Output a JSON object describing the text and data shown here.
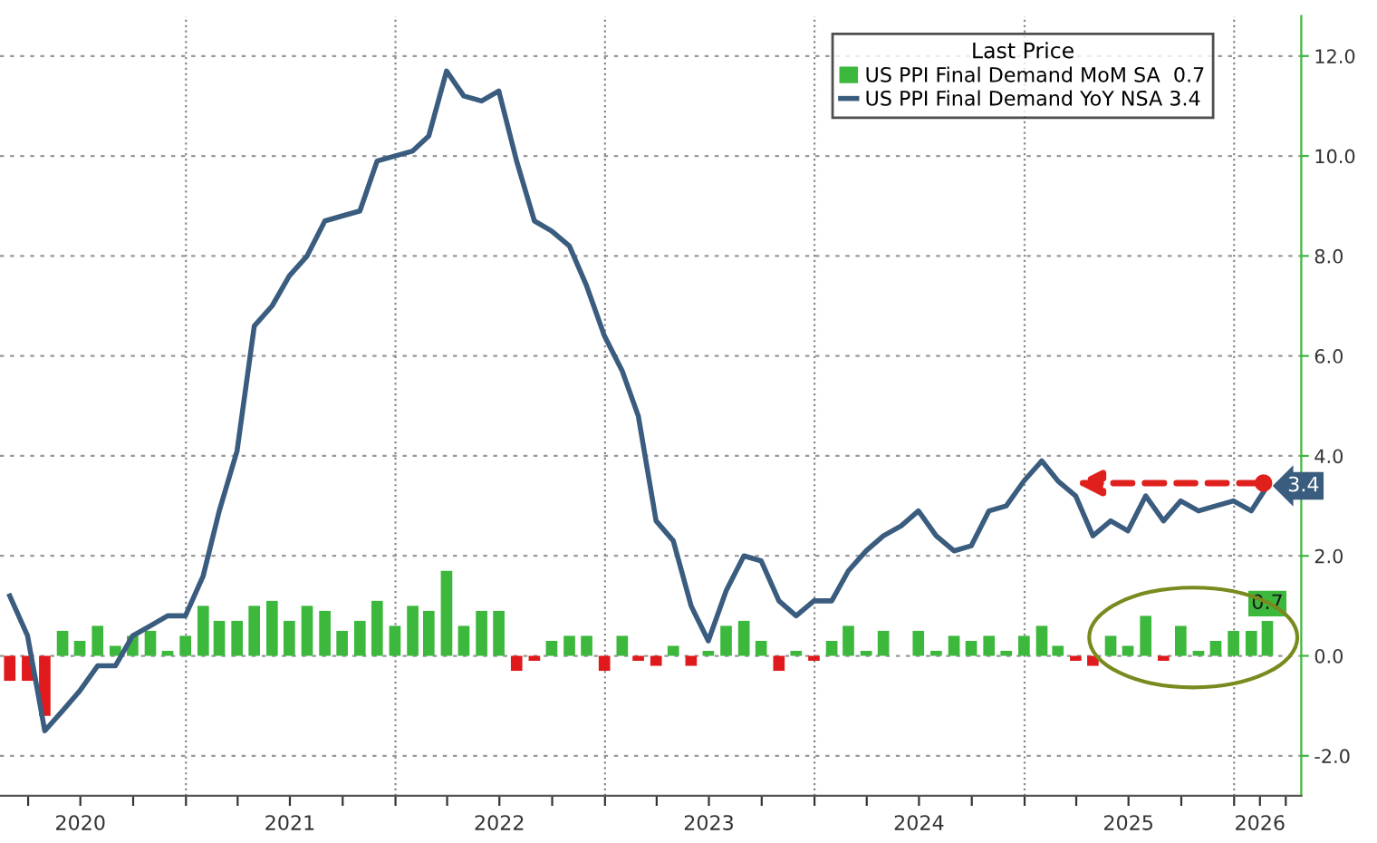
{
  "chart_data": {
    "type": "bar",
    "legend_title": "Last Price",
    "legend": "top right",
    "grid": "y",
    "x": [
      "2020-02-29",
      "2020-03-31",
      "2020-04-30",
      "2020-05-31",
      "2020-06-30",
      "2020-07-31",
      "2020-08-31",
      "2020-09-30",
      "2020-10-31",
      "2020-11-30",
      "2020-12-31",
      "2021-01-31",
      "2021-02-28",
      "2021-03-31",
      "2021-04-30",
      "2021-05-31",
      "2021-06-30",
      "2021-07-31",
      "2021-08-31",
      "2021-09-30",
      "2021-10-31",
      "2021-11-30",
      "2021-12-31",
      "2022-01-31",
      "2022-02-28",
      "2022-03-31",
      "2022-04-30",
      "2022-05-31",
      "2022-06-30",
      "2022-07-31",
      "2022-08-31",
      "2022-09-30",
      "2022-10-31",
      "2022-11-30",
      "2022-12-31",
      "2023-01-31",
      "2023-02-28",
      "2023-03-31",
      "2023-04-30",
      "2023-05-31",
      "2023-06-30",
      "2023-07-31",
      "2023-08-31",
      "2023-09-30",
      "2023-10-31",
      "2023-11-30",
      "2023-12-31",
      "2024-01-31",
      "2024-02-29",
      "2024-03-31",
      "2024-04-30",
      "2024-05-31",
      "2024-06-30",
      "2024-07-31",
      "2024-08-31",
      "2024-09-30",
      "2024-10-31",
      "2024-11-30",
      "2024-12-31",
      "2025-01-31",
      "2025-02-28",
      "2025-03-31",
      "2025-04-30",
      "2025-05-31",
      "2025-06-30",
      "2025-07-31",
      "2025-08-31",
      "2025-09-30",
      "2025-10-31",
      "2025-11-30",
      "2025-12-31",
      "2026-01-31",
      "2026-02-28"
    ],
    "series": [
      {
        "name": "US PPI Final Demand MoM SA  0.7",
        "color": "#3cb83c",
        "values": [
          -0.5,
          -0.5,
          -1.2,
          0.5,
          0.3,
          0.6,
          0.2,
          0.4,
          0.5,
          0.1,
          0.4,
          1.0,
          0.7,
          0.7,
          1.0,
          1.1,
          0.7,
          1.0,
          0.9,
          0.5,
          0.7,
          1.1,
          0.6,
          1.0,
          0.9,
          1.7,
          0.6,
          0.9,
          0.9,
          -0.3,
          -0.1,
          0.3,
          0.4,
          0.4,
          -0.3,
          0.4,
          -0.1,
          -0.2,
          0.2,
          -0.2,
          0.1,
          0.6,
          0.7,
          0.3,
          -0.3,
          0.1,
          -0.1,
          0.3,
          0.6,
          0.1,
          0.5,
          0.0,
          0.5,
          0.1,
          0.4,
          0.3,
          0.4,
          0.1,
          0.4,
          0.6,
          0.2,
          -0.1,
          -0.2,
          0.4,
          0.2,
          0.8,
          -0.1,
          0.6,
          0.1,
          0.3,
          0.5,
          0.5,
          0.7
        ],
        "colors": [
          "#e0191c",
          "#e0191c",
          "#e0191c",
          "#3cb83c",
          "#3cb83c",
          "#3cb83c",
          "#3cb83c",
          "#3cb83c",
          "#3cb83c",
          "#3cb83c",
          "#3cb83c",
          "#3cb83c",
          "#3cb83c",
          "#3cb83c",
          "#3cb83c",
          "#3cb83c",
          "#3cb83c",
          "#3cb83c",
          "#3cb83c",
          "#3cb83c",
          "#3cb83c",
          "#3cb83c",
          "#3cb83c",
          "#3cb83c",
          "#3cb83c",
          "#3cb83c",
          "#3cb83c",
          "#3cb83c",
          "#3cb83c",
          "#e0191c",
          "#e0191c",
          "#3cb83c",
          "#3cb83c",
          "#3cb83c",
          "#e0191c",
          "#3cb83c",
          "#e0191c",
          "#e0191c",
          "#3cb83c",
          "#e0191c",
          "#3cb83c",
          "#3cb83c",
          "#3cb83c",
          "#3cb83c",
          "#e0191c",
          "#3cb83c",
          "#e0191c",
          "#3cb83c",
          "#3cb83c",
          "#3cb83c",
          "#3cb83c",
          "#3cb83c",
          "#3cb83c",
          "#3cb83c",
          "#3cb83c",
          "#3cb83c",
          "#3cb83c",
          "#3cb83c",
          "#3cb83c",
          "#3cb83c",
          "#3cb83c",
          "#e0191c",
          "#e0191c",
          "#3cb83c",
          "#3cb83c",
          "#3cb83c",
          "#e0191c",
          "#3cb83c",
          "#3cb83c",
          "#3cb83c",
          "#3cb83c",
          "#3cb83c",
          "#3cb83c"
        ],
        "value_labels": [
          null,
          null,
          null,
          null,
          null,
          null,
          null,
          null,
          null,
          null,
          null,
          null,
          null,
          null,
          null,
          null,
          null,
          null,
          null,
          null,
          null,
          null,
          null,
          null,
          null,
          null,
          null,
          null,
          null,
          null,
          null,
          null,
          null,
          null,
          null,
          null,
          null,
          null,
          null,
          null,
          null,
          null,
          null,
          null,
          null,
          null,
          null,
          null,
          null,
          null,
          null,
          null,
          null,
          null,
          null,
          null,
          null,
          null,
          null,
          null,
          null,
          null,
          null,
          null,
          null,
          null,
          null,
          null,
          null,
          null,
          null,
          null,
          "0.7"
        ]
      },
      {
        "name": "US PPI Final Demand YoY NSA 3.4",
        "type": "line",
        "color": "#3a5c7e",
        "line_style": "solid",
        "values": [
          1.2,
          0.4,
          -1.5,
          -1.1,
          -0.7,
          -0.2,
          -0.2,
          0.4,
          0.6,
          0.8,
          0.8,
          1.6,
          2.9,
          4.1,
          6.6,
          7.0,
          7.6,
          8.0,
          8.7,
          8.8,
          8.9,
          9.9,
          10.0,
          10.1,
          10.4,
          11.7,
          11.2,
          11.1,
          11.3,
          9.9,
          8.7,
          8.5,
          8.2,
          7.4,
          6.4,
          5.7,
          4.8,
          2.7,
          2.3,
          1.0,
          0.3,
          1.3,
          2.0,
          1.9,
          1.1,
          0.8,
          1.1,
          1.1,
          1.7,
          2.1,
          2.4,
          2.6,
          2.9,
          2.4,
          2.1,
          2.2,
          2.9,
          3.0,
          3.5,
          3.9,
          3.5,
          3.2,
          2.4,
          2.7,
          2.5,
          3.2,
          2.7,
          3.1,
          2.9,
          3.0,
          3.1,
          2.9,
          3.4
        ],
        "value_labels": [
          null,
          null,
          null,
          null,
          null,
          null,
          null,
          null,
          null,
          null,
          null,
          null,
          null,
          null,
          null,
          null,
          null,
          null,
          null,
          null,
          null,
          null,
          null,
          null,
          null,
          null,
          null,
          null,
          null,
          null,
          null,
          null,
          null,
          null,
          null,
          null,
          null,
          null,
          null,
          null,
          null,
          null,
          null,
          null,
          null,
          null,
          null,
          null,
          null,
          null,
          null,
          null,
          null,
          null,
          null,
          null,
          null,
          null,
          null,
          null,
          null,
          null,
          null,
          null,
          null,
          null,
          null,
          null,
          null,
          null,
          null,
          null,
          "3.4"
        ]
      }
    ],
    "xlim": [
      "2020-02-12",
      "2026-04-28"
    ],
    "xticks": [
      {
        "value": "2020-04-01",
        "label": null
      },
      {
        "value": "2020-07-01",
        "label": "2020"
      },
      {
        "value": "2020-10-01",
        "label": null
      },
      {
        "value": "2021-01-01",
        "label": null
      },
      {
        "value": "2021-04-01",
        "label": null
      },
      {
        "value": "2021-07-01",
        "label": "2021"
      },
      {
        "value": "2021-10-01",
        "label": null
      },
      {
        "value": "2022-01-01",
        "label": null
      },
      {
        "value": "2022-04-01",
        "label": null
      },
      {
        "value": "2022-07-01",
        "label": "2022"
      },
      {
        "value": "2022-10-01",
        "label": null
      },
      {
        "value": "2023-01-01",
        "label": null
      },
      {
        "value": "2023-04-01",
        "label": null
      },
      {
        "value": "2023-07-01",
        "label": "2023"
      },
      {
        "value": "2023-10-01",
        "label": null
      },
      {
        "value": "2024-01-01",
        "label": null
      },
      {
        "value": "2024-04-01",
        "label": null
      },
      {
        "value": "2024-07-01",
        "label": "2024"
      },
      {
        "value": "2024-10-01",
        "label": null
      },
      {
        "value": "2025-01-01",
        "label": null
      },
      {
        "value": "2025-04-01",
        "label": null
      },
      {
        "value": "2025-07-01",
        "label": "2025"
      },
      {
        "value": "2025-10-01",
        "label": null
      },
      {
        "value": "2026-01-01",
        "label": null
      },
      {
        "value": "2026-02-15",
        "label": "2026"
      },
      {
        "value": "2026-04-01",
        "label": null
      }
    ],
    "ylim": [
      -2.8,
      12.8
    ],
    "yticks": [
      {
        "value": -2,
        "label": "-2.0"
      },
      {
        "value": 0,
        "label": "0.0"
      },
      {
        "value": 2,
        "label": "2.0"
      },
      {
        "value": 4,
        "label": "4.0"
      },
      {
        "value": 6,
        "label": "6.0"
      },
      {
        "value": 8,
        "label": "8.0"
      },
      {
        "value": 10,
        "label": "10.0"
      },
      {
        "value": 12,
        "label": "12.0"
      }
    ],
    "ref_lines": [
      {
        "axis": "x",
        "value": "2021-01-01",
        "label": null,
        "color": "#888888",
        "line_style": "dotted"
      },
      {
        "axis": "x",
        "value": "2022-01-01",
        "label": null,
        "color": "#888888",
        "line_style": "dotted"
      },
      {
        "axis": "x",
        "value": "2023-01-01",
        "label": null,
        "color": "#888888",
        "line_style": "dotted"
      },
      {
        "axis": "x",
        "value": "2024-01-01",
        "label": null,
        "color": "#888888",
        "line_style": "dotted"
      },
      {
        "axis": "x",
        "value": "2025-01-01",
        "label": null,
        "color": "#888888",
        "line_style": "dotted"
      },
      {
        "axis": "x",
        "value": "2026-01-01",
        "label": null,
        "color": "#888888",
        "line_style": "dotted"
      }
    ]
  }
}
